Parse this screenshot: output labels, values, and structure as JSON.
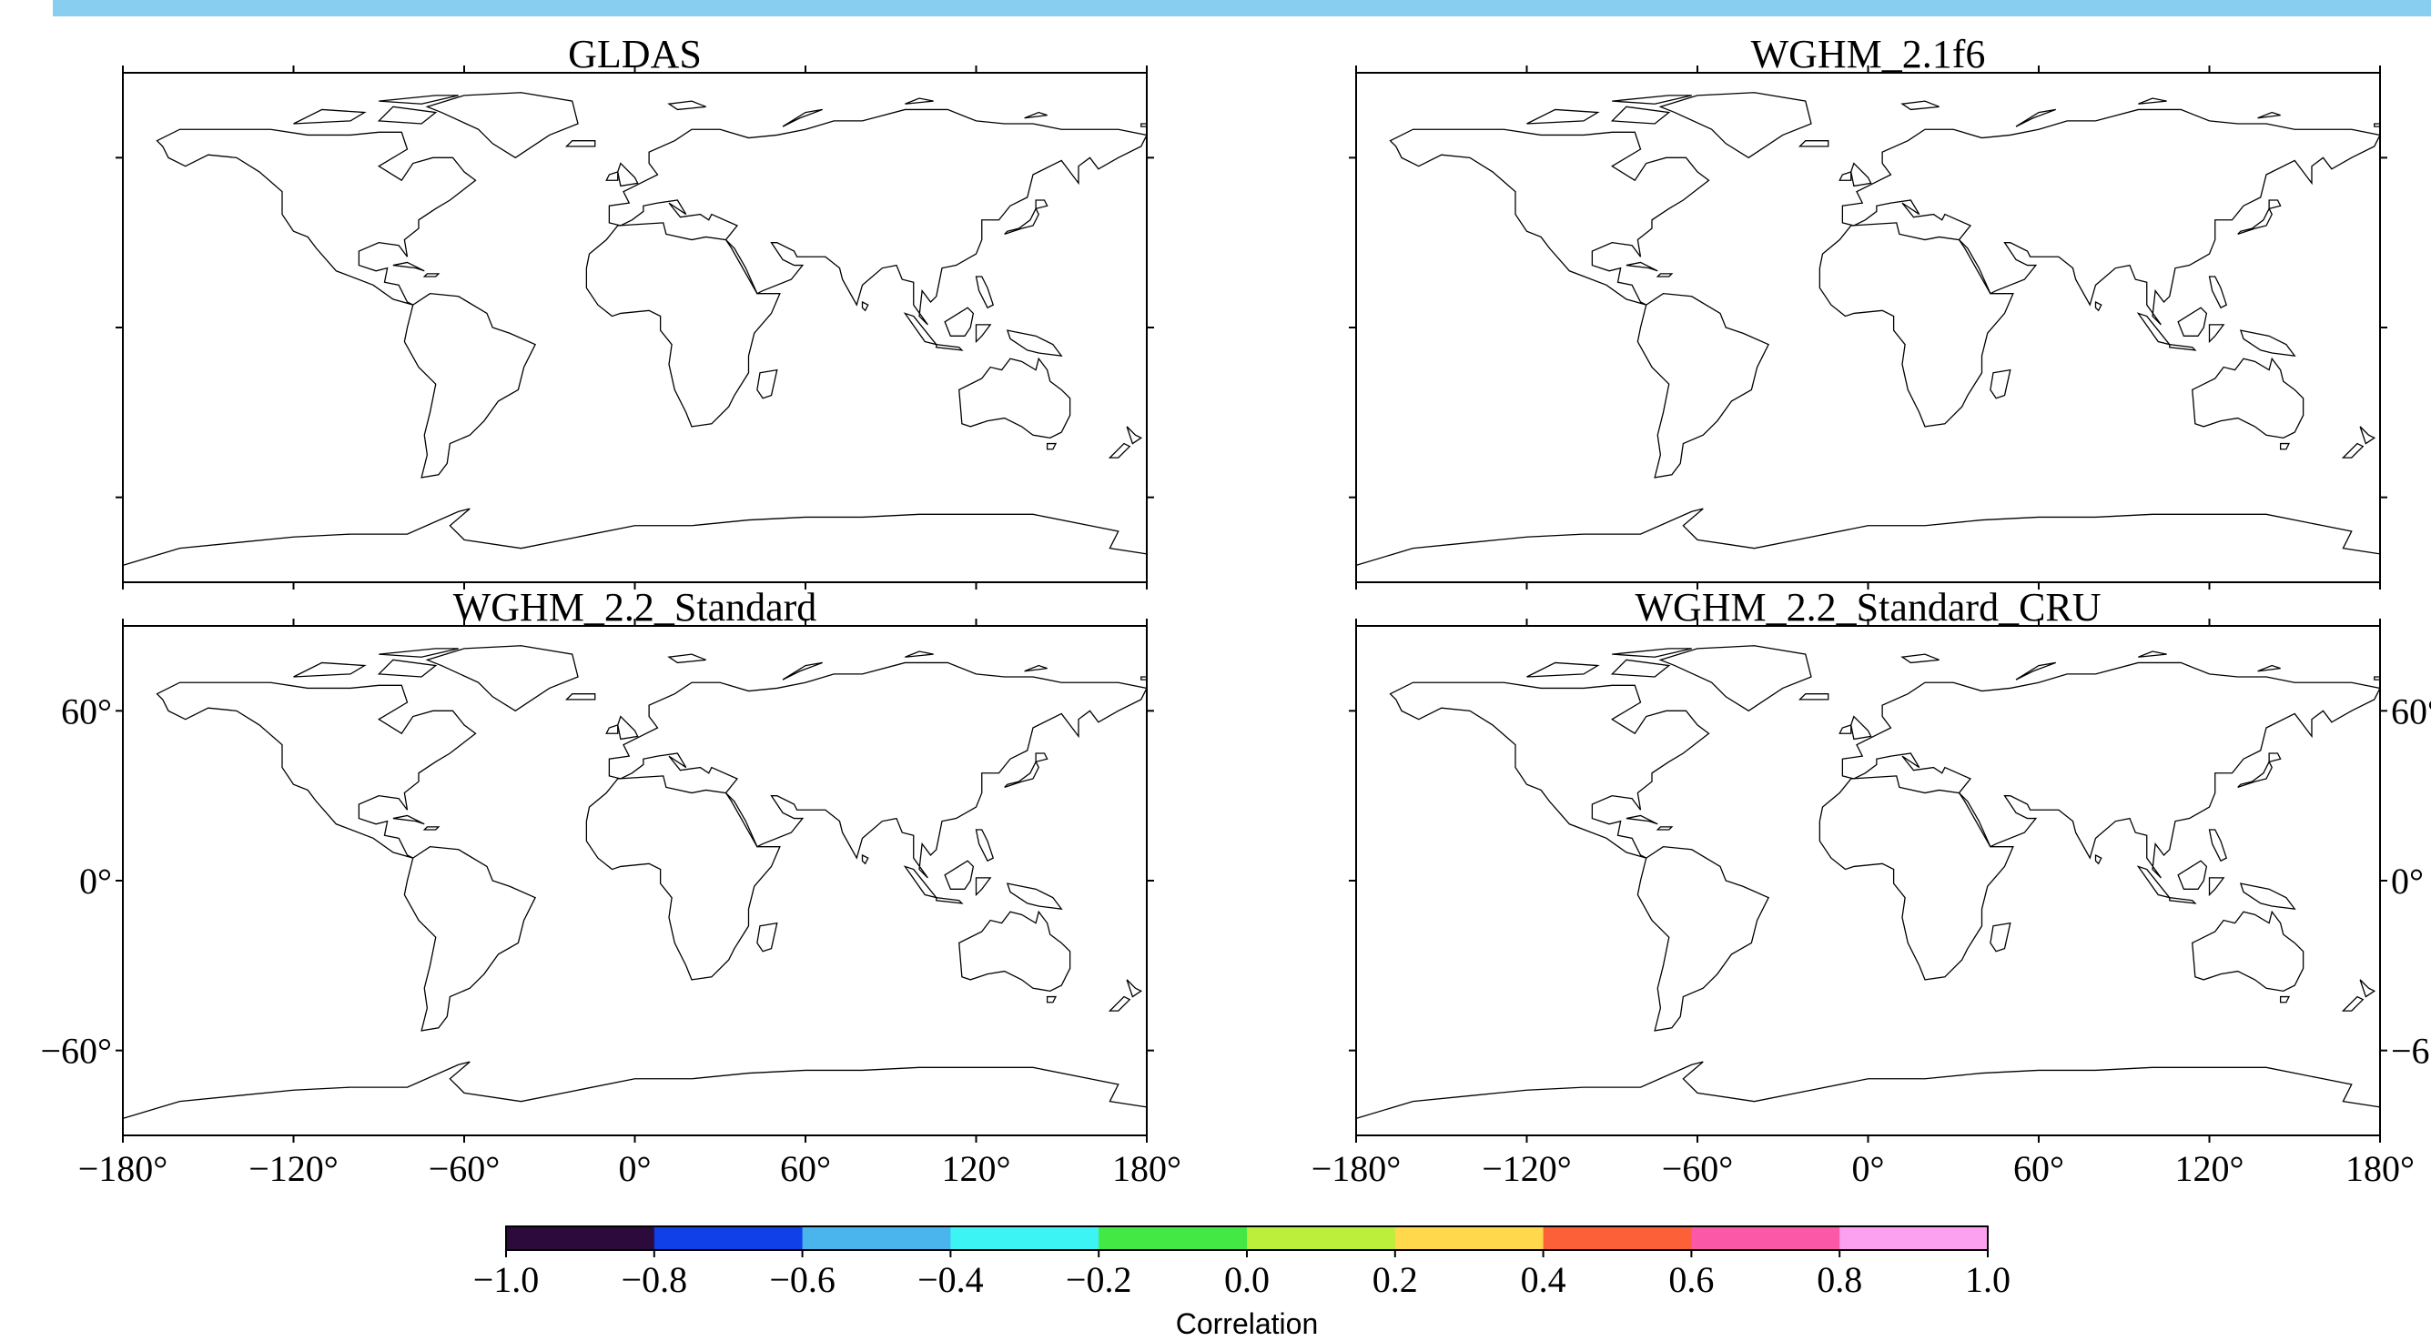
{
  "panels": [
    {
      "title": "GLDAS"
    },
    {
      "title": "WGHM_2.1f6"
    },
    {
      "title": "WGHM_2.2_Standard"
    },
    {
      "title": "WGHM_2.2_Standard_CRU"
    }
  ],
  "x_tick_labels": [
    "−180°",
    "−120°",
    "−60°",
    "0°",
    "60°",
    "120°",
    "180°"
  ],
  "y_tick_labels": [
    "60°",
    "0°",
    "−60°"
  ],
  "colorbar": {
    "label": "Correlation",
    "tick_labels": [
      "−1.0",
      "−0.8",
      "−0.6",
      "−0.4",
      "−0.2",
      "0.0",
      "0.2",
      "0.4",
      "0.6",
      "0.8",
      "1.0"
    ],
    "bounds": [
      -1.0,
      -0.8,
      -0.6,
      -0.4,
      -0.2,
      0.0,
      0.2,
      0.4,
      0.6,
      0.8,
      1.0
    ],
    "colors": [
      "#2c0a3c",
      "#1040e8",
      "#4ab4ec",
      "#3cf4f4",
      "#44e844",
      "#bcee3c",
      "#ffd84c",
      "#fc6038",
      "#fc58a8",
      "#fca0f0"
    ]
  },
  "map": {
    "projection": "equirectangular",
    "lon_range": [
      -180,
      180
    ],
    "lat_range": [
      -90,
      90
    ],
    "marker": "circle"
  }
}
